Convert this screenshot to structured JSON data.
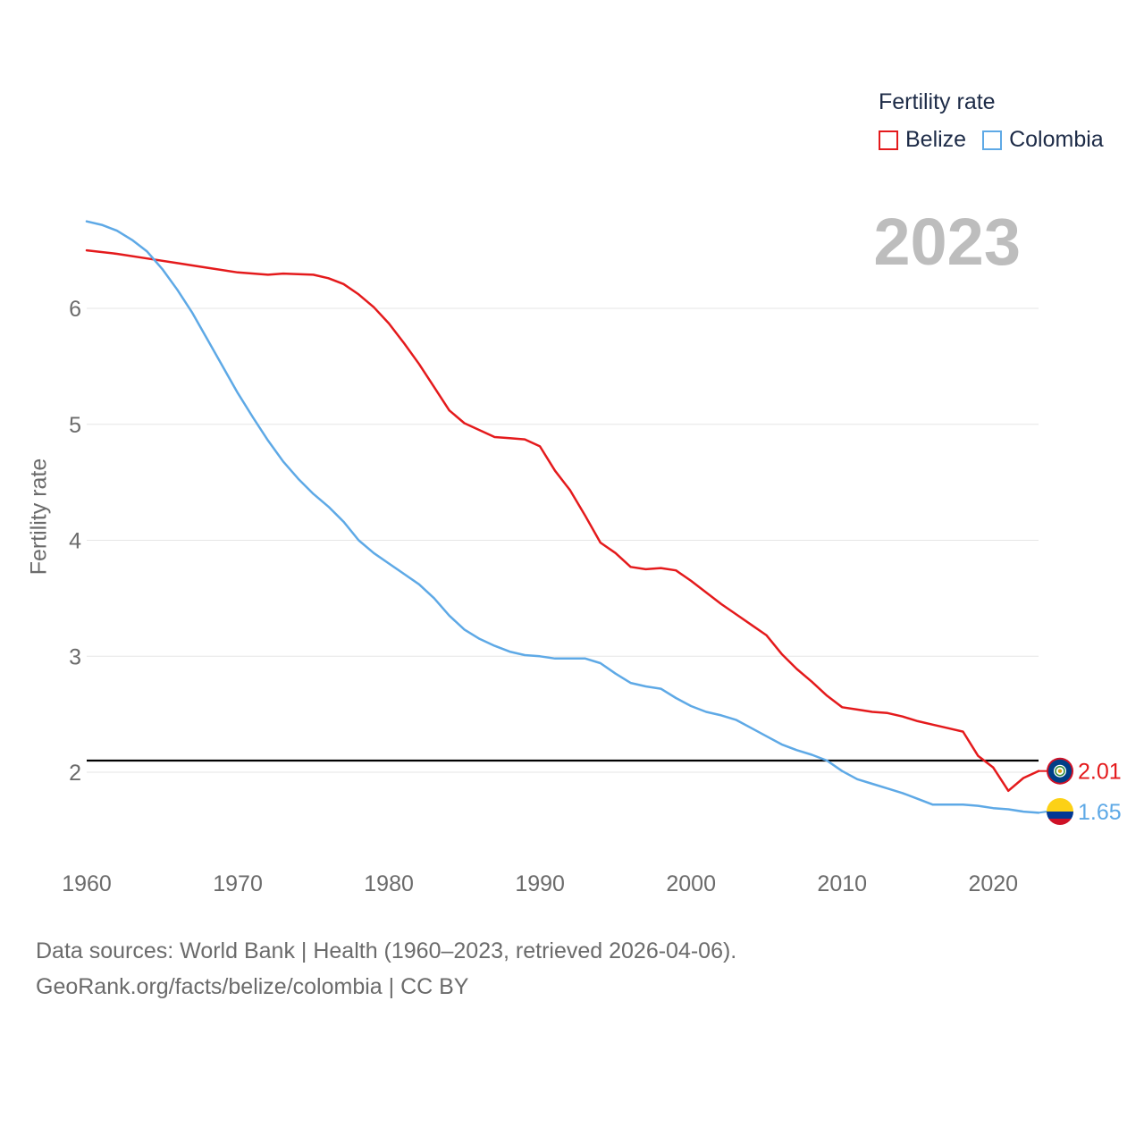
{
  "legend": {
    "title": "Fertility rate",
    "items": [
      {
        "name": "Belize",
        "color": "#e41a1c"
      },
      {
        "name": "Colombia",
        "color": "#5ea9e6"
      }
    ]
  },
  "year_label": "2023",
  "source": {
    "line1": "Data sources: World Bank | Health (1960–2023, retrieved 2026-04-06).",
    "line2": "GeoRank.org/facts/belize/colombia | CC BY"
  },
  "chart_data": {
    "type": "line",
    "title": "Fertility rate",
    "xlabel": "",
    "ylabel": "Fertility rate",
    "xlim": [
      1960,
      2024
    ],
    "ylim": [
      1.4,
      7.0
    ],
    "x_ticks": [
      1960,
      1970,
      1980,
      1990,
      2000,
      2010,
      2020
    ],
    "y_ticks": [
      2,
      3,
      4,
      5,
      6
    ],
    "reference_line": {
      "y": 2.1,
      "color": "#000000"
    },
    "series": [
      {
        "name": "Belize",
        "color": "#e41a1c",
        "end_label": "2.01",
        "points": [
          [
            1960,
            6.5
          ],
          [
            1962,
            6.47
          ],
          [
            1964,
            6.43
          ],
          [
            1966,
            6.39
          ],
          [
            1968,
            6.35
          ],
          [
            1970,
            6.31
          ],
          [
            1972,
            6.29
          ],
          [
            1973,
            6.3
          ],
          [
            1975,
            6.29
          ],
          [
            1976,
            6.26
          ],
          [
            1977,
            6.21
          ],
          [
            1978,
            6.12
          ],
          [
            1979,
            6.01
          ],
          [
            1980,
            5.87
          ],
          [
            1981,
            5.7
          ],
          [
            1982,
            5.52
          ],
          [
            1983,
            5.32
          ],
          [
            1984,
            5.12
          ],
          [
            1985,
            5.01
          ],
          [
            1986,
            4.95
          ],
          [
            1987,
            4.89
          ],
          [
            1988,
            4.88
          ],
          [
            1989,
            4.87
          ],
          [
            1990,
            4.81
          ],
          [
            1991,
            4.6
          ],
          [
            1992,
            4.43
          ],
          [
            1993,
            4.21
          ],
          [
            1994,
            3.98
          ],
          [
            1995,
            3.89
          ],
          [
            1996,
            3.77
          ],
          [
            1997,
            3.75
          ],
          [
            1998,
            3.76
          ],
          [
            1999,
            3.74
          ],
          [
            2000,
            3.65
          ],
          [
            2001,
            3.55
          ],
          [
            2002,
            3.45
          ],
          [
            2003,
            3.36
          ],
          [
            2004,
            3.27
          ],
          [
            2005,
            3.18
          ],
          [
            2006,
            3.02
          ],
          [
            2007,
            2.89
          ],
          [
            2008,
            2.78
          ],
          [
            2009,
            2.66
          ],
          [
            2010,
            2.56
          ],
          [
            2011,
            2.54
          ],
          [
            2012,
            2.52
          ],
          [
            2013,
            2.51
          ],
          [
            2014,
            2.48
          ],
          [
            2015,
            2.44
          ],
          [
            2016,
            2.41
          ],
          [
            2017,
            2.38
          ],
          [
            2018,
            2.35
          ],
          [
            2019,
            2.14
          ],
          [
            2020,
            2.04
          ],
          [
            2021,
            1.84
          ],
          [
            2022,
            1.95
          ],
          [
            2023,
            2.01
          ]
        ]
      },
      {
        "name": "Colombia",
        "color": "#5ea9e6",
        "end_label": "1.65",
        "points": [
          [
            1960,
            6.75
          ],
          [
            1961,
            6.72
          ],
          [
            1962,
            6.67
          ],
          [
            1963,
            6.59
          ],
          [
            1964,
            6.49
          ],
          [
            1965,
            6.34
          ],
          [
            1966,
            6.16
          ],
          [
            1967,
            5.96
          ],
          [
            1968,
            5.73
          ],
          [
            1969,
            5.5
          ],
          [
            1970,
            5.27
          ],
          [
            1971,
            5.06
          ],
          [
            1972,
            4.86
          ],
          [
            1973,
            4.68
          ],
          [
            1974,
            4.53
          ],
          [
            1975,
            4.4
          ],
          [
            1976,
            4.29
          ],
          [
            1977,
            4.16
          ],
          [
            1978,
            4.0
          ],
          [
            1979,
            3.89
          ],
          [
            1980,
            3.8
          ],
          [
            1981,
            3.71
          ],
          [
            1982,
            3.62
          ],
          [
            1983,
            3.5
          ],
          [
            1984,
            3.35
          ],
          [
            1985,
            3.23
          ],
          [
            1986,
            3.15
          ],
          [
            1987,
            3.09
          ],
          [
            1988,
            3.04
          ],
          [
            1989,
            3.01
          ],
          [
            1990,
            3.0
          ],
          [
            1991,
            2.98
          ],
          [
            1992,
            2.98
          ],
          [
            1993,
            2.98
          ],
          [
            1994,
            2.94
          ],
          [
            1995,
            2.85
          ],
          [
            1996,
            2.77
          ],
          [
            1997,
            2.74
          ],
          [
            1998,
            2.72
          ],
          [
            1999,
            2.64
          ],
          [
            2000,
            2.57
          ],
          [
            2001,
            2.52
          ],
          [
            2002,
            2.49
          ],
          [
            2003,
            2.45
          ],
          [
            2004,
            2.38
          ],
          [
            2005,
            2.31
          ],
          [
            2006,
            2.24
          ],
          [
            2007,
            2.19
          ],
          [
            2008,
            2.15
          ],
          [
            2009,
            2.1
          ],
          [
            2010,
            2.01
          ],
          [
            2011,
            1.94
          ],
          [
            2012,
            1.9
          ],
          [
            2013,
            1.86
          ],
          [
            2014,
            1.82
          ],
          [
            2015,
            1.77
          ],
          [
            2016,
            1.72
          ],
          [
            2017,
            1.72
          ],
          [
            2018,
            1.72
          ],
          [
            2019,
            1.71
          ],
          [
            2020,
            1.69
          ],
          [
            2021,
            1.68
          ],
          [
            2022,
            1.66
          ],
          [
            2023,
            1.65
          ]
        ]
      }
    ]
  }
}
